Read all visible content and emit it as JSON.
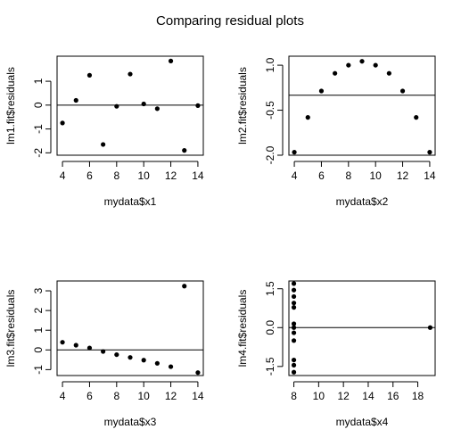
{
  "title": "Comparing residual plots",
  "chart_data": [
    {
      "type": "scatter",
      "xlabel": "mydata$x1",
      "ylabel": "lm1.fit$residuals",
      "xlim": [
        3.6,
        14.4
      ],
      "ylim": [
        -2.1,
        2.05
      ],
      "xticks": [
        "4",
        "6",
        "8",
        "10",
        "12",
        "14"
      ],
      "xtick_values": [
        4,
        6,
        8,
        10,
        12,
        14
      ],
      "yticks": [
        "-2",
        "-1",
        "0",
        "1"
      ],
      "ytick_values": [
        -2,
        -1,
        0,
        1
      ],
      "hline": 0,
      "points": [
        {
          "x": 4,
          "y": -0.75
        },
        {
          "x": 5,
          "y": 0.2
        },
        {
          "x": 6,
          "y": 1.25
        },
        {
          "x": 7,
          "y": -1.65
        },
        {
          "x": 8,
          "y": -0.05
        },
        {
          "x": 9,
          "y": 1.3
        },
        {
          "x": 10,
          "y": 0.05
        },
        {
          "x": 11,
          "y": -0.15
        },
        {
          "x": 12,
          "y": 1.85
        },
        {
          "x": 13,
          "y": -1.9
        },
        {
          "x": 14,
          "y": -0.02
        }
      ]
    },
    {
      "type": "scatter",
      "xlabel": "mydata$x2",
      "ylabel": "lm2.fit$residuals",
      "xlim": [
        3.6,
        14.4
      ],
      "ylim": [
        -2.0,
        1.3
      ],
      "xticks": [
        "4",
        "6",
        "8",
        "10",
        "12",
        "14"
      ],
      "xtick_values": [
        4,
        6,
        8,
        10,
        12,
        14
      ],
      "yticks": [
        "-2.0",
        "-0.5",
        "1.0"
      ],
      "ytick_values": [
        -2.0,
        -0.5,
        1.0
      ],
      "hline": 0,
      "points": [
        {
          "x": 4,
          "y": -1.9
        },
        {
          "x": 5,
          "y": -0.74
        },
        {
          "x": 6,
          "y": 0.14
        },
        {
          "x": 7,
          "y": 0.73
        },
        {
          "x": 8,
          "y": 1.0
        },
        {
          "x": 9,
          "y": 1.13
        },
        {
          "x": 10,
          "y": 1.0
        },
        {
          "x": 11,
          "y": 0.73
        },
        {
          "x": 12,
          "y": 0.14
        },
        {
          "x": 13,
          "y": -0.74
        },
        {
          "x": 14,
          "y": -1.9
        }
      ]
    },
    {
      "type": "scatter",
      "xlabel": "mydata$x3",
      "ylabel": "lm3.fit$residuals",
      "xlim": [
        3.6,
        14.4
      ],
      "ylim": [
        -1.3,
        3.5
      ],
      "xticks": [
        "4",
        "6",
        "8",
        "10",
        "12",
        "14"
      ],
      "xtick_values": [
        4,
        6,
        8,
        10,
        12,
        14
      ],
      "yticks": [
        "-1",
        "0",
        "1",
        "2",
        "3"
      ],
      "ytick_values": [
        -1,
        0,
        1,
        2,
        3
      ],
      "hline": 0,
      "points": [
        {
          "x": 4,
          "y": 0.39
        },
        {
          "x": 5,
          "y": 0.24
        },
        {
          "x": 6,
          "y": 0.1
        },
        {
          "x": 7,
          "y": -0.08
        },
        {
          "x": 8,
          "y": -0.24
        },
        {
          "x": 9,
          "y": -0.38
        },
        {
          "x": 10,
          "y": -0.52
        },
        {
          "x": 11,
          "y": -0.68
        },
        {
          "x": 12,
          "y": -0.85
        },
        {
          "x": 13,
          "y": 3.24
        },
        {
          "x": 14,
          "y": -1.15
        }
      ]
    },
    {
      "type": "scatter",
      "xlabel": "mydata$x4",
      "ylabel": "lm4.fit$residuals",
      "xlim": [
        7.6,
        19.4
      ],
      "ylim": [
        -1.85,
        1.8
      ],
      "xticks": [
        "8",
        "10",
        "12",
        "14",
        "16",
        "18"
      ],
      "xtick_values": [
        8,
        10,
        12,
        14,
        16,
        18
      ],
      "yticks": [
        "-1.5",
        "0.0",
        "1.5"
      ],
      "ytick_values": [
        -1.5,
        0.0,
        1.5
      ],
      "hline": 0,
      "points": [
        {
          "x": 8,
          "y": 1.7
        },
        {
          "x": 8,
          "y": 1.45
        },
        {
          "x": 8,
          "y": 1.2
        },
        {
          "x": 8,
          "y": 0.95
        },
        {
          "x": 8,
          "y": 0.78
        },
        {
          "x": 8,
          "y": 0.15
        },
        {
          "x": 8,
          "y": 0.0
        },
        {
          "x": 8,
          "y": -0.2
        },
        {
          "x": 8,
          "y": -0.5
        },
        {
          "x": 8,
          "y": -1.25
        },
        {
          "x": 8,
          "y": -1.45
        },
        {
          "x": 8,
          "y": -1.72
        },
        {
          "x": 19,
          "y": 0.0
        }
      ]
    }
  ]
}
